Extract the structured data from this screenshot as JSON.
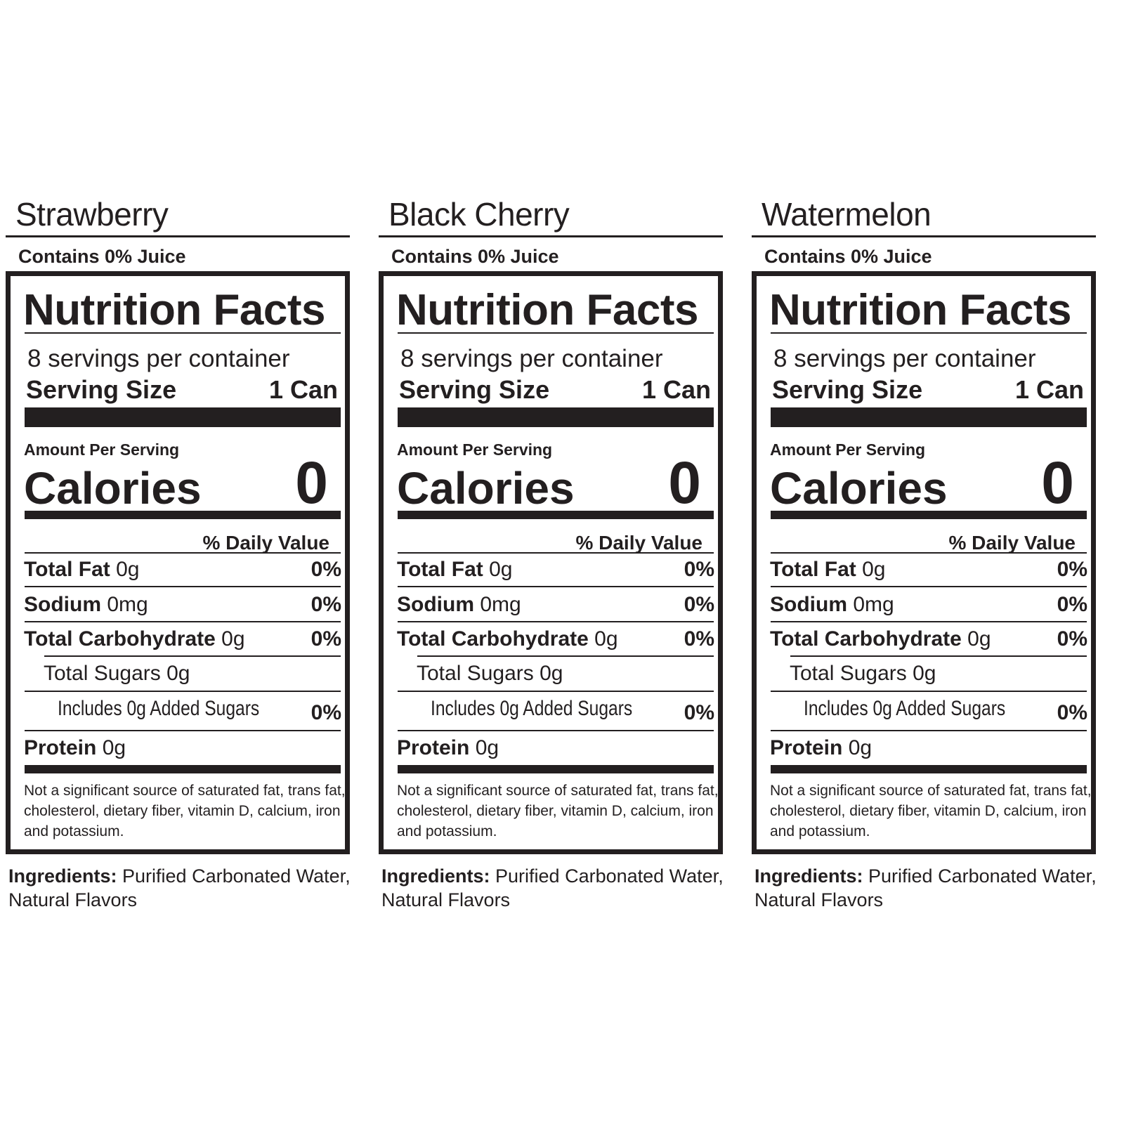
{
  "panels": [
    {
      "flavor": "Strawberry"
    },
    {
      "flavor": "Black Cherry"
    },
    {
      "flavor": "Watermelon"
    }
  ],
  "label": {
    "juice": "Contains 0% Juice",
    "title": "Nutrition Facts",
    "servings": "8 servings per container",
    "serving_size_label": "Serving Size",
    "serving_size_value": "1 Can",
    "amount_per_serving": "Amount Per Serving",
    "calories_label": "Calories",
    "calories_value": "0",
    "daily_value_header": "% Daily Value",
    "rows": [
      {
        "name": "Total Fat",
        "amount": " 0g",
        "dv": "0%"
      },
      {
        "name": "Sodium",
        "amount": " 0mg",
        "dv": "0%"
      },
      {
        "name": "Total Carbohydrate",
        "amount": " 0g",
        "dv": "0%"
      },
      {
        "name": "",
        "amount": "Total Sugars 0g",
        "dv": ""
      },
      {
        "name": "",
        "amount": "Includes 0g Added Sugars",
        "dv": "0%"
      },
      {
        "name": "Protein",
        "amount": " 0g",
        "dv": ""
      }
    ],
    "footnote": "Not a significant source of saturated fat, trans fat, cholesterol, dietary fiber, vitamin D, calcium, iron and potassium.",
    "ingredients_label": "Ingredients:",
    "ingredients": " Purified Carbonated Water, Natural Flavors"
  }
}
